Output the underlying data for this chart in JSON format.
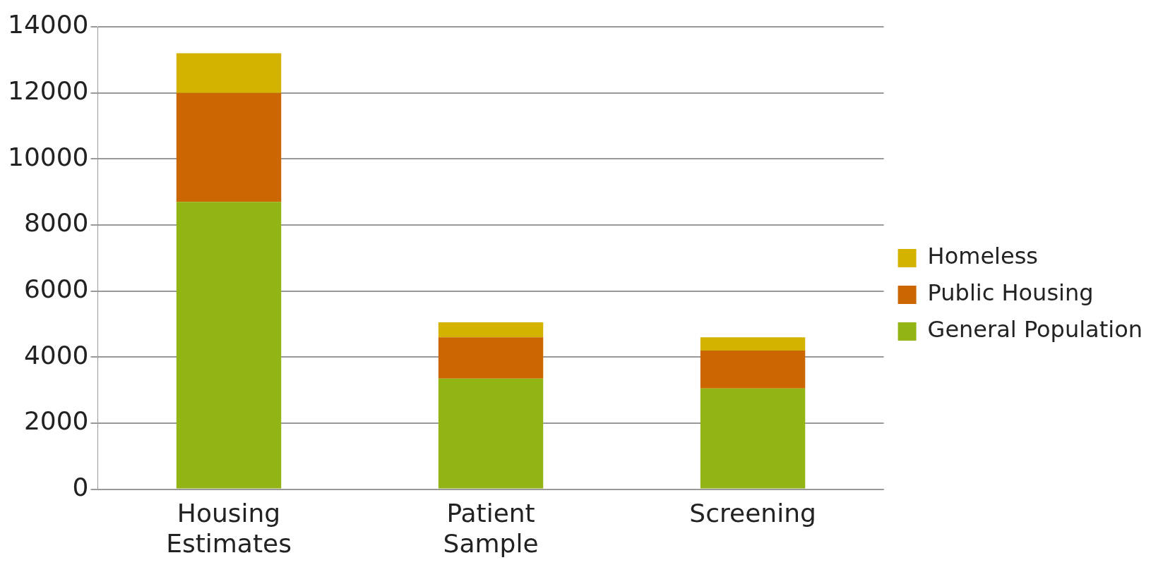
{
  "chart_data": {
    "type": "bar",
    "stacked": true,
    "categories": [
      "Housing\nEstimates",
      "Patient\nSample",
      "Screening"
    ],
    "series": [
      {
        "name": "General Population",
        "color": "#92b515",
        "values": [
          8700,
          3350,
          3050
        ]
      },
      {
        "name": "Public Housing",
        "color": "#cc6600",
        "values": [
          3300,
          1250,
          1150
        ]
      },
      {
        "name": "Homeless",
        "color": "#d4b200",
        "values": [
          1200,
          450,
          400
        ]
      }
    ],
    "ylim": [
      0,
      14000
    ],
    "yticks": [
      0,
      2000,
      4000,
      6000,
      8000,
      10000,
      12000,
      14000
    ],
    "grid": "y",
    "legend": "right"
  }
}
